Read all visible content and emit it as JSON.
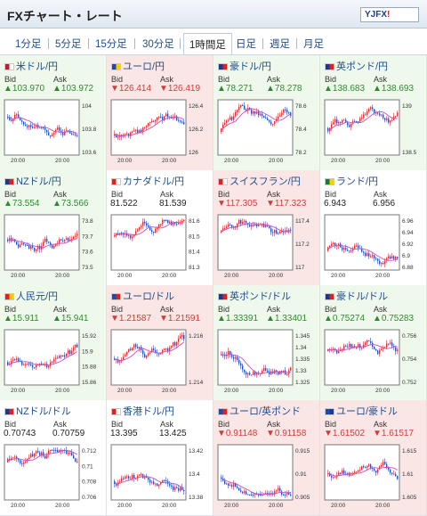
{
  "title": "FXチャート・レート",
  "logo": {
    "main": "YJFX",
    "bang": "!"
  },
  "tabs": [
    {
      "label": "1分足",
      "active": false
    },
    {
      "label": "5分足",
      "active": false
    },
    {
      "label": "15分足",
      "active": false
    },
    {
      "label": "30分足",
      "active": false
    },
    {
      "label": "1時間足",
      "active": true
    },
    {
      "label": "日足",
      "active": false
    },
    {
      "label": "週足",
      "active": false
    },
    {
      "label": "月足",
      "active": false
    }
  ],
  "bid_label": "Bid",
  "ask_label": "Ask",
  "pairs": [
    {
      "name": "米ドル/円",
      "trend": "up",
      "bid": "▲103.970",
      "ask": "▲103.972",
      "flag": [
        "#b22234",
        "#ffffff"
      ],
      "ticks": [
        "104",
        "103.8",
        "103.6"
      ],
      "xticks": [
        "20:00",
        "20:00"
      ]
    },
    {
      "name": "ユーロ/円",
      "trend": "down",
      "bid": "▼126.414",
      "ask": "▼126.419",
      "flag": [
        "#1f4aa8",
        "#ffcc00"
      ],
      "ticks": [
        "126.4",
        "126.2",
        "126"
      ],
      "xticks": [
        "20:00",
        "20:00"
      ]
    },
    {
      "name": "豪ドル/円",
      "trend": "up",
      "bid": "▲78.271",
      "ask": "▲78.278",
      "flag": [
        "#1f3a8a",
        "#d22"
      ],
      "ticks": [
        "78.6",
        "78.4",
        "78.2"
      ],
      "xticks": [
        "20:00",
        "20:00"
      ]
    },
    {
      "name": "英ポンド/円",
      "trend": "up",
      "bid": "▲138.683",
      "ask": "▲138.693",
      "flag": [
        "#1f3a8a",
        "#d22"
      ],
      "ticks": [
        "139",
        "138.5"
      ],
      "xticks": [
        "20:00",
        "20:00"
      ]
    },
    {
      "name": "NZドル/円",
      "trend": "up",
      "bid": "▲73.554",
      "ask": "▲73.566",
      "flag": [
        "#1f3a8a",
        "#d22"
      ],
      "ticks": [
        "73.8",
        "73.7",
        "73.6",
        "73.5"
      ],
      "xticks": [
        "20:00",
        "20:00"
      ]
    },
    {
      "name": "カナダドル/円",
      "trend": "flat",
      "bid": "81.522",
      "ask": "81.539",
      "flag": [
        "#d22",
        "#ffffff"
      ],
      "ticks": [
        "81.6",
        "81.5",
        "81.4",
        "81.3"
      ],
      "xticks": [
        "20:00",
        "20:00"
      ]
    },
    {
      "name": "スイスフラン/円",
      "trend": "down",
      "bid": "▼117.305",
      "ask": "▼117.323",
      "flag": [
        "#d22",
        "#ffffff"
      ],
      "ticks": [
        "117.4",
        "117.2",
        "117"
      ],
      "xticks": [
        "20:00",
        "20:00"
      ]
    },
    {
      "name": "ランド/円",
      "trend": "flat",
      "bid": "6.943",
      "ask": "6.956",
      "flag": [
        "#1b7a3a",
        "#ffcc00"
      ],
      "ticks": [
        "6.96",
        "6.94",
        "6.92",
        "6.9",
        "6.88"
      ],
      "xticks": [
        "20:00",
        "20:00"
      ]
    },
    {
      "name": "人民元/円",
      "trend": "up",
      "bid": "▲15.911",
      "ask": "▲15.941",
      "flag": [
        "#d22",
        "#ffcc00"
      ],
      "ticks": [
        "15.92",
        "15.9",
        "15.88",
        "15.86"
      ],
      "xticks": [
        "20:00",
        "20:00"
      ]
    },
    {
      "name": "ユーロ/ドル",
      "trend": "down",
      "bid": "▼1.21587",
      "ask": "▼1.21591",
      "flag": [
        "#1f4aa8",
        "#d22"
      ],
      "ticks": [
        "1.216",
        "1.214"
      ],
      "xticks": [
        "20:00",
        "20:00"
      ]
    },
    {
      "name": "英ポンド/ドル",
      "trend": "up",
      "bid": "▲1.33391",
      "ask": "▲1.33401",
      "flag": [
        "#1f3a8a",
        "#d22"
      ],
      "ticks": [
        "1.345",
        "1.34",
        "1.335",
        "1.33",
        "1.325"
      ],
      "xticks": [
        "20:00",
        "20:00"
      ]
    },
    {
      "name": "豪ドル/ドル",
      "trend": "up",
      "bid": "▲0.75274",
      "ask": "▲0.75283",
      "flag": [
        "#1f3a8a",
        "#d22"
      ],
      "ticks": [
        "0.756",
        "0.754",
        "0.752"
      ],
      "xticks": [
        "20:00",
        "20:00"
      ]
    },
    {
      "name": "NZドル/ドル",
      "trend": "flat",
      "bid": "0.70743",
      "ask": "0.70759",
      "flag": [
        "#1f3a8a",
        "#d22"
      ],
      "ticks": [
        "0.712",
        "0.71",
        "0.708",
        "0.706"
      ],
      "xticks": [
        "20:00",
        "20:00"
      ]
    },
    {
      "name": "香港ドル/円",
      "trend": "flat",
      "bid": "13.395",
      "ask": "13.425",
      "flag": [
        "#d22",
        "#ffffff"
      ],
      "ticks": [
        "13.42",
        "13.4",
        "13.38"
      ],
      "xticks": [
        "20:00",
        "20:00"
      ]
    },
    {
      "name": "ユーロ/英ポンド",
      "trend": "down",
      "bid": "▼0.91148",
      "ask": "▼0.91158",
      "flag": [
        "#1f4aa8",
        "#d22"
      ],
      "ticks": [
        "0.915",
        "0.91",
        "0.905"
      ],
      "xticks": [
        "20:00",
        "20:00"
      ]
    },
    {
      "name": "ユーロ/豪ドル",
      "trend": "down",
      "bid": "▼1.61502",
      "ask": "▼1.61517",
      "flag": [
        "#1f4aa8",
        "#1f3a8a"
      ],
      "ticks": [
        "1.615",
        "1.61",
        "1.605"
      ],
      "xticks": [
        "20:00",
        "20:00"
      ]
    }
  ]
}
